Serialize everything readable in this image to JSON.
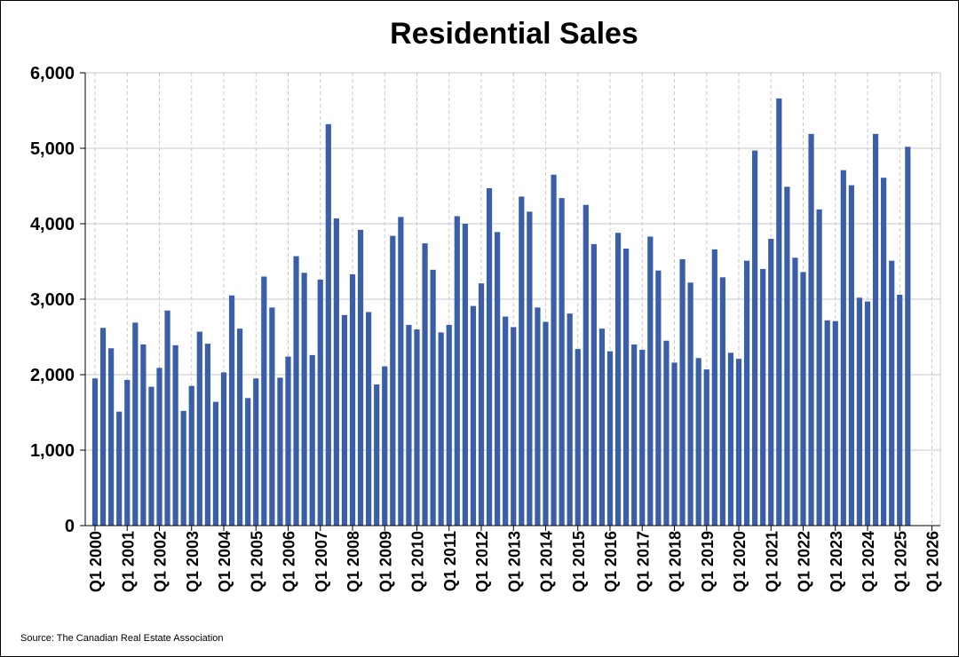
{
  "chart_data": {
    "type": "bar",
    "title": "Residential Sales",
    "xlabel": "",
    "ylabel": "",
    "ylim": [
      0,
      6000
    ],
    "yticks": [
      0,
      1000,
      2000,
      3000,
      4000,
      5000,
      6000
    ],
    "ytick_labels": [
      "0",
      "1,000",
      "2,000",
      "3,000",
      "4,000",
      "5,000",
      "6,000"
    ],
    "x_tick_labels": [
      "Q1 2000",
      "Q1 2001",
      "Q1 2002",
      "Q1 2003",
      "Q1 2004",
      "Q1 2005",
      "Q1 2006",
      "Q1 2007",
      "Q1 2008",
      "Q1 2009",
      "Q1 2010",
      "Q1 2011",
      "Q1 2012",
      "Q1 2013",
      "Q1 2014",
      "Q1 2015",
      "Q1 2016",
      "Q1 2017",
      "Q1 2018",
      "Q1 2019",
      "Q1 2020",
      "Q1 2021",
      "Q1 2022",
      "Q1 2023",
      "Q1 2024",
      "Q1 2025",
      "Q1 2026"
    ],
    "grid": true,
    "bar_color": "#3a5ea8",
    "values": [
      1950,
      2620,
      2350,
      1510,
      1930,
      2690,
      2400,
      1840,
      2090,
      2850,
      2390,
      1520,
      1850,
      2570,
      2410,
      1640,
      2030,
      3050,
      2610,
      1690,
      1950,
      3300,
      2890,
      1960,
      2240,
      3570,
      3350,
      2260,
      3260,
      5320,
      4070,
      2790,
      3330,
      3920,
      2830,
      1870,
      2110,
      3840,
      4090,
      2660,
      2600,
      3740,
      3390,
      2560,
      2660,
      4100,
      4000,
      2910,
      3210,
      4470,
      3890,
      2770,
      2630,
      4360,
      4160,
      2890,
      2700,
      4650,
      4340,
      2810,
      2340,
      4250,
      3730,
      2610,
      2310,
      3880,
      3670,
      2400,
      2330,
      3830,
      3380,
      2450,
      2160,
      3530,
      3220,
      2220,
      2070,
      3660,
      3290,
      2290,
      2210,
      3510,
      4970,
      3400,
      3800,
      5660,
      4490,
      3550,
      3360,
      5190,
      4190,
      2720,
      2710,
      4710,
      4510,
      3020,
      2970,
      5190,
      4610,
      3510,
      3060,
      5020
    ],
    "source": "Source: The Canadian Real Estate Association"
  }
}
